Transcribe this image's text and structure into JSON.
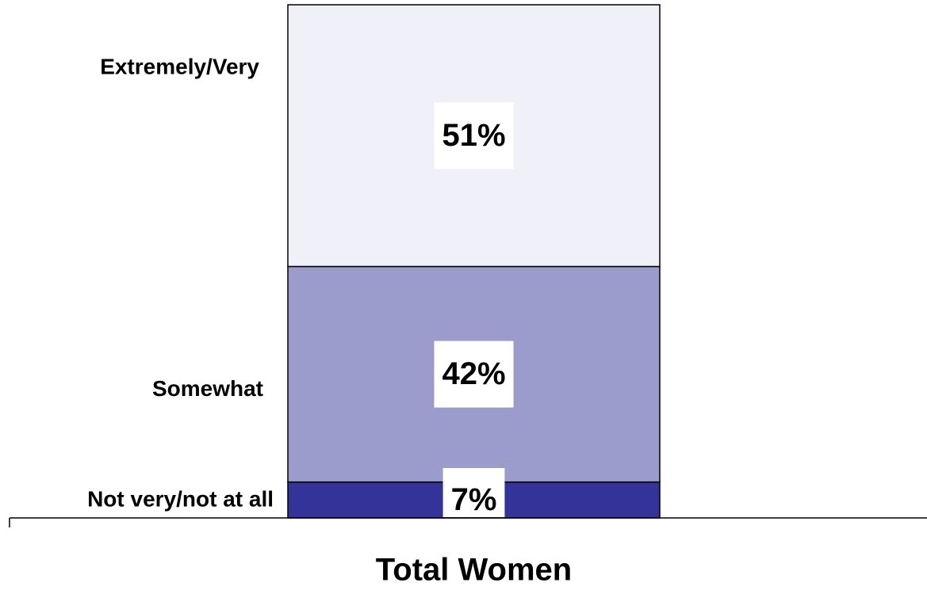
{
  "chart_data": {
    "type": "bar",
    "stacked": true,
    "categories": [
      "Total Women"
    ],
    "series": [
      {
        "name": "Not very/not at all",
        "color": "#333399",
        "values": [
          7
        ],
        "value_labels": [
          "7%"
        ]
      },
      {
        "name": "Somewhat",
        "color": "#9c9ccc",
        "values": [
          42
        ],
        "value_labels": [
          "42%"
        ]
      },
      {
        "name": "Extremely/Very",
        "color": "#f0f0f8",
        "values": [
          51
        ],
        "value_labels": [
          "51%"
        ]
      }
    ],
    "ylim": [
      0,
      100
    ]
  }
}
